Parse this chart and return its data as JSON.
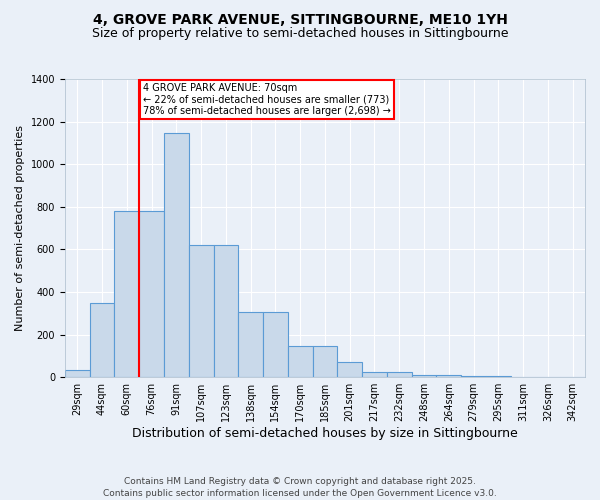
{
  "title": "4, GROVE PARK AVENUE, SITTINGBOURNE, ME10 1YH",
  "subtitle": "Size of property relative to semi-detached houses in Sittingbourne",
  "xlabel": "Distribution of semi-detached houses by size in Sittingbourne",
  "ylabel": "Number of semi-detached properties",
  "bar_labels": [
    "29sqm",
    "44sqm",
    "60sqm",
    "76sqm",
    "91sqm",
    "107sqm",
    "123sqm",
    "138sqm",
    "154sqm",
    "170sqm",
    "185sqm",
    "201sqm",
    "217sqm",
    "232sqm",
    "248sqm",
    "264sqm",
    "279sqm",
    "295sqm",
    "311sqm",
    "326sqm",
    "342sqm"
  ],
  "bar_values": [
    35,
    350,
    780,
    780,
    1145,
    620,
    620,
    305,
    305,
    145,
    145,
    70,
    25,
    25,
    10,
    10,
    5,
    5,
    3,
    3,
    2
  ],
  "bar_color": "#c9d9ea",
  "bar_edge_color": "#5b9bd5",
  "annotation_text_line1": "4 GROVE PARK AVENUE: 70sqm",
  "annotation_text_line2": "← 22% of semi-detached houses are smaller (773)",
  "annotation_text_line3": "78% of semi-detached houses are larger (2,698) →",
  "property_line_x": 2.5,
  "ylim": [
    0,
    1400
  ],
  "yticks": [
    0,
    200,
    400,
    600,
    800,
    1000,
    1200,
    1400
  ],
  "footnote_line1": "Contains HM Land Registry data © Crown copyright and database right 2025.",
  "footnote_line2": "Contains public sector information licensed under the Open Government Licence v3.0.",
  "bg_color": "#eaf0f8",
  "plot_bg_color": "#eaf0f8",
  "grid_color": "#ffffff",
  "title_fontsize": 10,
  "subtitle_fontsize": 9,
  "xlabel_fontsize": 9,
  "ylabel_fontsize": 8,
  "tick_fontsize": 7,
  "footnote_fontsize": 6.5
}
